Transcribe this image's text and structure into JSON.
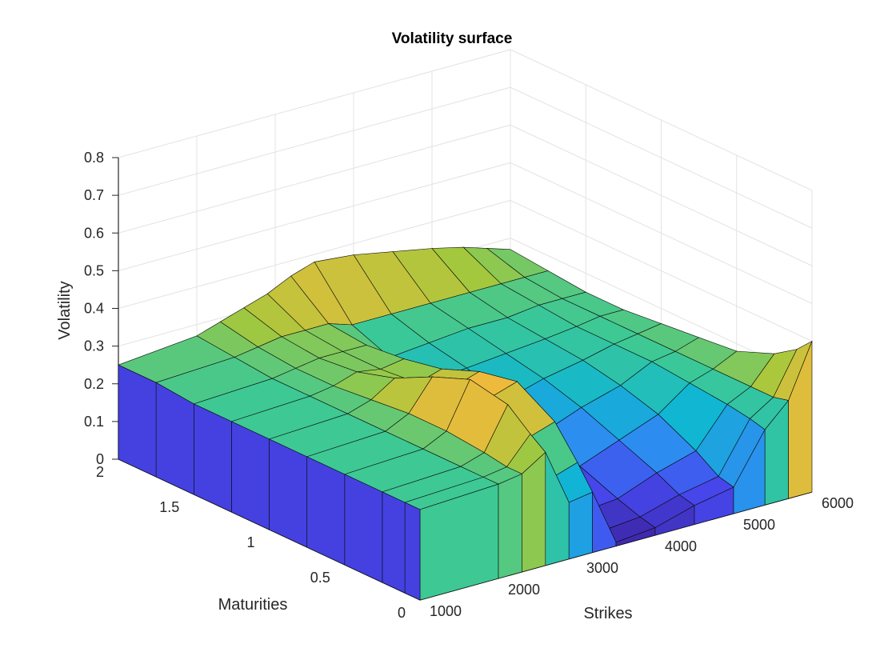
{
  "chart_data": {
    "type": "surface",
    "title": "Volatility surface",
    "xlabel": "Strikes",
    "ylabel": "Maturities",
    "zlabel": "Volatility",
    "xlim": [
      1000,
      6000
    ],
    "ylim": [
      0,
      2
    ],
    "zlim": [
      0,
      0.8
    ],
    "xticks": [
      "1000",
      "2000",
      "3000",
      "4000",
      "5000",
      "6000"
    ],
    "yticks": [
      "0",
      "0.5",
      "1",
      "1.5",
      "2"
    ],
    "zticks": [
      "0",
      "0.1",
      "0.2",
      "0.3",
      "0.4",
      "0.5",
      "0.6",
      "0.7",
      "0.8"
    ],
    "grid": true,
    "colormap": "parula",
    "strikes": [
      1000,
      2000,
      2300,
      2600,
      2900,
      3200,
      3500,
      4000,
      4500,
      5000,
      5400,
      5700,
      6000
    ],
    "maturities": [
      0,
      0.1,
      0.25,
      0.5,
      0.75,
      1.0,
      1.25,
      1.5,
      1.75,
      2.0
    ],
    "volatility": [
      [
        0.24,
        0.25,
        0.26,
        0.3,
        0.15,
        0.16,
        0.01,
        0.02,
        0.05,
        0.07,
        0.2,
        0.26,
        0.4
      ],
      [
        0.24,
        0.25,
        0.26,
        0.33,
        0.2,
        0.22,
        0.02,
        0.03,
        0.06,
        0.08,
        0.21,
        0.25,
        0.36
      ],
      [
        0.24,
        0.25,
        0.27,
        0.38,
        0.28,
        0.3,
        0.04,
        0.05,
        0.09,
        0.12,
        0.22,
        0.25,
        0.32
      ],
      [
        0.24,
        0.25,
        0.28,
        0.4,
        0.34,
        0.36,
        0.08,
        0.09,
        0.13,
        0.17,
        0.23,
        0.25,
        0.28
      ],
      [
        0.24,
        0.25,
        0.28,
        0.36,
        0.32,
        0.34,
        0.12,
        0.13,
        0.17,
        0.2,
        0.24,
        0.25,
        0.27
      ],
      [
        0.24,
        0.25,
        0.27,
        0.31,
        0.28,
        0.3,
        0.16,
        0.17,
        0.2,
        0.22,
        0.24,
        0.25,
        0.26
      ],
      [
        0.24,
        0.25,
        0.26,
        0.28,
        0.27,
        0.28,
        0.2,
        0.21,
        0.22,
        0.23,
        0.24,
        0.25,
        0.25
      ],
      [
        0.24,
        0.25,
        0.26,
        0.27,
        0.27,
        0.27,
        0.22,
        0.23,
        0.24,
        0.24,
        0.25,
        0.25,
        0.25
      ],
      [
        0.25,
        0.26,
        0.27,
        0.28,
        0.28,
        0.28,
        0.26,
        0.26,
        0.26,
        0.26,
        0.26,
        0.26,
        0.26
      ],
      [
        0.25,
        0.27,
        0.29,
        0.31,
        0.33,
        0.36,
        0.38,
        0.37,
        0.35,
        0.33,
        0.31,
        0.29,
        0.27
      ]
    ]
  }
}
